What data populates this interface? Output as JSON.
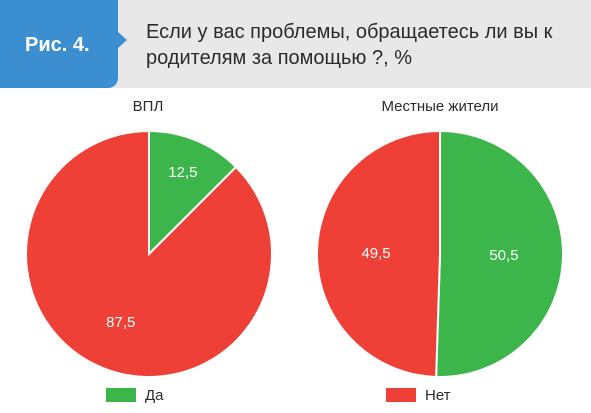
{
  "header": {
    "figure_label": "Рис. 4.",
    "title": "Если у вас проблемы, обращаетесь ли вы к родителям за помощью ?, %"
  },
  "colors": {
    "yes": "#3cb54a",
    "no": "#ee4036",
    "badge": "#3b8fd0",
    "header_band": "#e8e8e8"
  },
  "legend": {
    "yes_label": "Да",
    "no_label": "Нет"
  },
  "chart_data": [
    {
      "type": "pie",
      "title": "ВПЛ",
      "slices": [
        {
          "label": "Да",
          "value": 12.5,
          "value_text": "12,5"
        },
        {
          "label": "Нет",
          "value": 87.5,
          "value_text": "87,5"
        }
      ]
    },
    {
      "type": "pie",
      "title": "Местные жители",
      "slices": [
        {
          "label": "Да",
          "value": 50.5,
          "value_text": "50,5"
        },
        {
          "label": "Нет",
          "value": 49.5,
          "value_text": "49,5"
        }
      ]
    }
  ]
}
